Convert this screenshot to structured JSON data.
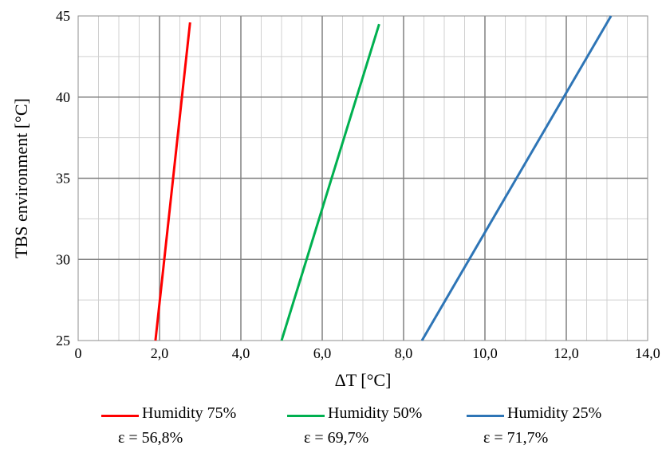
{
  "chart_data": {
    "type": "line",
    "title": "",
    "xlabel": "ΔT [°C]",
    "ylabel": "TBS environment [°C]",
    "xlim": [
      0,
      14
    ],
    "ylim": [
      25,
      45
    ],
    "x_ticks": [
      "0",
      "2,0",
      "4,0",
      "6,0",
      "8,0",
      "10,0",
      "12,0",
      "14,0"
    ],
    "y_ticks": [
      "25",
      "30",
      "35",
      "40",
      "45"
    ],
    "grid": true,
    "legend_position": "bottom",
    "series": [
      {
        "name": "Humidity 75%",
        "efficiency": "ε = 56,8%",
        "color": "#ff0000",
        "points": [
          [
            1.9,
            25
          ],
          [
            2.75,
            44.6
          ]
        ]
      },
      {
        "name": "Humidity 50%",
        "efficiency": "ε = 69,7%",
        "color": "#00b050",
        "points": [
          [
            5.0,
            25
          ],
          [
            7.4,
            44.5
          ]
        ]
      },
      {
        "name": "Humidity 25%",
        "efficiency": "ε = 71,7%",
        "color": "#2e75b6",
        "points": [
          [
            8.45,
            25
          ],
          [
            13.1,
            45
          ]
        ]
      }
    ]
  }
}
